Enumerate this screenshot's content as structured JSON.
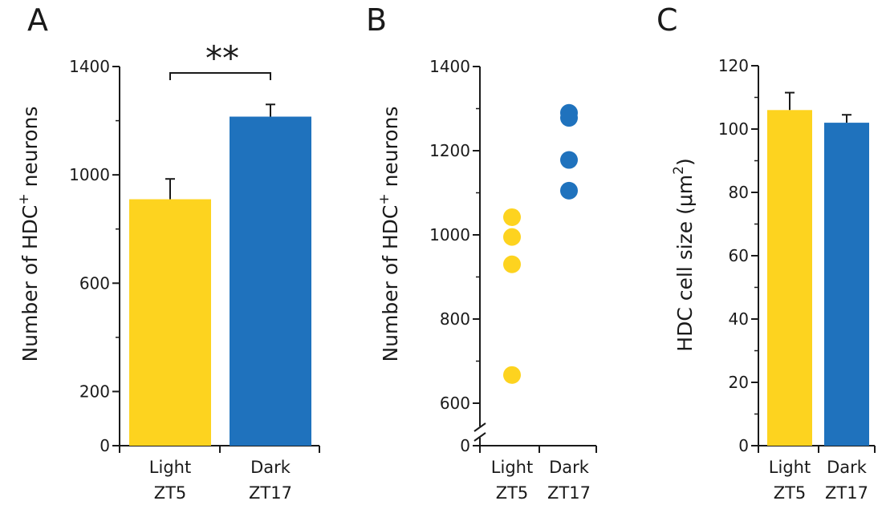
{
  "colors": {
    "light": "#FDD31F",
    "dark": "#1F72BD"
  },
  "chart_data": [
    {
      "panel": "A",
      "type": "bar",
      "categories": [
        [
          "Light",
          "ZT5"
        ],
        [
          "Dark",
          "ZT17"
        ]
      ],
      "values": [
        910,
        1215
      ],
      "errors": [
        75,
        45
      ],
      "ylabel_main": "Number of HDC",
      "ylabel_sup": "+",
      "ylabel_tail": " neurons",
      "ylim": [
        0,
        1400
      ],
      "yticks": [
        "0",
        "200",
        "600",
        "1000",
        "1400"
      ],
      "significance": "**"
    },
    {
      "panel": "B",
      "type": "scatter",
      "categories": [
        [
          "Light",
          "ZT5"
        ],
        [
          "Dark",
          "ZT17"
        ]
      ],
      "points": [
        [
          1042,
          995,
          930,
          667
        ],
        [
          1290,
          1278,
          1178,
          1105
        ]
      ],
      "ylabel_main": "Number of HDC",
      "ylabel_sup": "+",
      "ylabel_tail": " neurons",
      "ylim": [
        600,
        1400
      ],
      "axis_break": true,
      "yticks": [
        "0",
        "600",
        "800",
        "1000",
        "1200",
        "1400"
      ]
    },
    {
      "panel": "C",
      "type": "bar",
      "categories": [
        [
          "Light",
          "ZT5"
        ],
        [
          "Dark",
          "ZT17"
        ]
      ],
      "values": [
        106,
        102
      ],
      "errors": [
        5.5,
        2.5
      ],
      "ylabel_main": "HDC cell size (",
      "ylabel_mu": "μm",
      "ylabel_sup": "2",
      "ylabel_tail": ")",
      "ylim": [
        0,
        120
      ],
      "yticks": [
        "0",
        "20",
        "40",
        "60",
        "80",
        "100",
        "120"
      ]
    }
  ]
}
